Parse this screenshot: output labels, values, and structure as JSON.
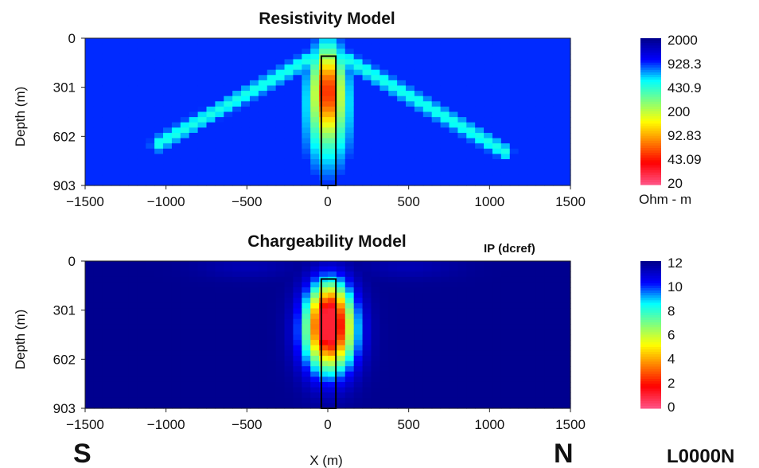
{
  "figure": {
    "s_label": "S",
    "n_label": "N",
    "xlabel": "X (m)",
    "line_id": "L0000N",
    "ip_label": "IP (dcref)"
  },
  "chart_data": [
    {
      "type": "heatmap",
      "title": "Resistivity Model",
      "xlabel": "",
      "ylabel": "Depth (m)",
      "xlim": [
        -1500,
        1500
      ],
      "ylim": [
        0,
        903
      ],
      "x_ticks": [
        "-1500",
        "-1000",
        "-500",
        "0",
        "500",
        "1000",
        "1500"
      ],
      "y_ticks": [
        "0",
        "301",
        "602",
        "903"
      ],
      "colorbar": {
        "scale": "log",
        "labels": [
          "2000",
          "928.3",
          "430.9",
          "200",
          "92.83",
          "43.09",
          "20"
        ],
        "unit": "Ohm - m"
      },
      "background_value": 930,
      "features": [
        {
          "kind": "conductor",
          "x_center": 0,
          "depth_center": 330,
          "min_value": 40
        },
        {
          "kind": "dipping-arm",
          "side": "west",
          "from": [
            -100,
            120
          ],
          "to": [
            -1050,
            650
          ],
          "value": 480
        },
        {
          "kind": "dipping-arm",
          "side": "east",
          "from": [
            100,
            120
          ],
          "to": [
            1100,
            700
          ],
          "value": 480
        }
      ],
      "target_box": {
        "x_min": -40,
        "x_max": 50,
        "depth_min": 110,
        "depth_max": 903
      }
    },
    {
      "type": "heatmap",
      "title": "Chargeability Model",
      "xlabel": "",
      "ylabel": "Depth (m)",
      "xlim": [
        -1500,
        1500
      ],
      "ylim": [
        0,
        903
      ],
      "x_ticks": [
        "-1500",
        "-1000",
        "-500",
        "0",
        "500",
        "1000",
        "1500"
      ],
      "y_ticks": [
        "0",
        "301",
        "602",
        "903"
      ],
      "colorbar": {
        "scale": "linear",
        "labels": [
          "12",
          "10",
          "8",
          "6",
          "4",
          "2",
          "0"
        ],
        "range": [
          0,
          12
        ]
      },
      "background_value": 0,
      "features": [
        {
          "kind": "chargeable-body",
          "x_center": 10,
          "depth_center": 430,
          "max_value": 11
        }
      ],
      "target_box": {
        "x_min": -40,
        "x_max": 50,
        "depth_min": 110,
        "depth_max": 903
      }
    }
  ],
  "colors": {
    "jet_stops": [
      "#00008f",
      "#0000ff",
      "#00ffff",
      "#7fff7f",
      "#ffff00",
      "#ff7f00",
      "#ff0000",
      "#ff4f7f"
    ]
  }
}
